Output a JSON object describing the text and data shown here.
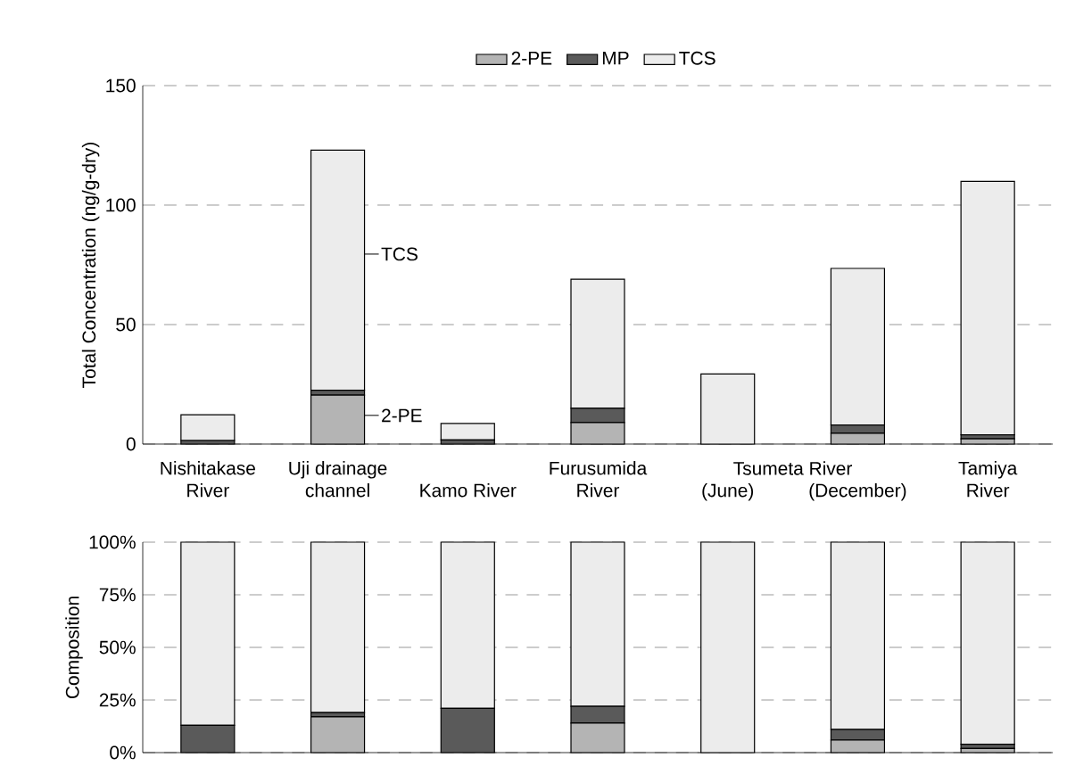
{
  "chart_data": [
    {
      "type": "bar",
      "stacked": true,
      "ylabel": "Total Concentration (ng/g-dry)",
      "categories": [
        "Nishitakase River",
        "Uji drainage channel",
        "Kamo River",
        "Furusumida River",
        "(June)",
        "(December)",
        "Tamiya River"
      ],
      "series": [
        {
          "name": "2-PE",
          "color": "#b4b4b4",
          "values": [
            0,
            20.5,
            0,
            9,
            0,
            4.5,
            2.2
          ]
        },
        {
          "name": "MP",
          "color": "#5a5a5a",
          "values": [
            1.5,
            2,
            1.7,
            6,
            0,
            3.5,
            1.7
          ]
        },
        {
          "name": "TCS",
          "color": "#ececec",
          "values": [
            10.8,
            100.5,
            6.9,
            54,
            29.3,
            65.5,
            106
          ]
        }
      ],
      "ylim": [
        0,
        150
      ],
      "yticks": [
        0,
        50,
        100,
        150
      ],
      "grid": "y",
      "legend": "top",
      "annotations": [
        "TCS",
        "2-PE",
        "Tsumeta River"
      ]
    },
    {
      "type": "bar",
      "stacked": true,
      "ylabel": "Composition",
      "categories": [
        null,
        null,
        null,
        null,
        null,
        null,
        null
      ],
      "series": [
        {
          "color": "#b4b4b4",
          "values": [
            0,
            17,
            0,
            14,
            0,
            6,
            2
          ]
        },
        {
          "color": "#5a5a5a",
          "values": [
            13,
            2,
            21,
            8,
            0,
            5,
            2
          ]
        },
        {
          "color": "#ececec",
          "values": [
            87,
            81,
            79,
            78,
            100,
            89,
            96
          ]
        }
      ],
      "ylim": [
        0,
        100
      ],
      "yticks": [
        {
          "value": 0,
          "label": "0%"
        },
        {
          "value": 25,
          "label": "25%"
        },
        {
          "value": 50,
          "label": "50%"
        },
        {
          "value": 75,
          "label": "75%"
        },
        {
          "value": 100,
          "label": "100%"
        }
      ],
      "grid": "y",
      "tick_labels": "y"
    }
  ]
}
